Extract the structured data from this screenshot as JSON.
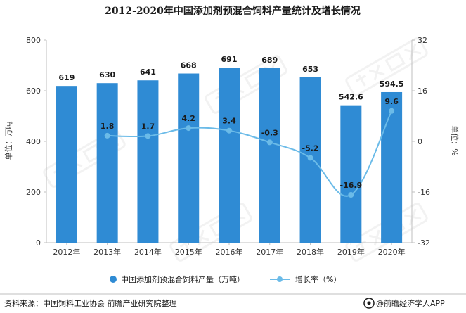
{
  "chart_data": {
    "type": "bar",
    "title": "2012-2020年中国添加剂预混合饲料产量统计及增长情况",
    "categories": [
      "2012年",
      "2013年",
      "2014年",
      "2015年",
      "2016年",
      "2017年",
      "2018年",
      "2019年",
      "2020年"
    ],
    "series": [
      {
        "name": "中国添加剂预混合饲料产量（万吨）",
        "type": "bar",
        "axis": "left",
        "values": [
          619,
          630,
          641,
          668,
          691,
          689,
          653,
          542.6,
          594.5
        ],
        "labels": [
          "619",
          "630",
          "641",
          "668",
          "691",
          "689",
          "653",
          "542.6",
          "594.5"
        ],
        "color": "#2f8bd4"
      },
      {
        "name": "增长率（%）",
        "type": "line",
        "axis": "right",
        "values": [
          null,
          1.8,
          1.7,
          4.2,
          3.4,
          -0.3,
          -5.2,
          -16.9,
          9.6
        ],
        "labels": [
          "",
          "1.8",
          "1.7",
          "4.2",
          "3.4",
          "-0.3",
          "-5.2",
          "-16.9",
          "9.6"
        ],
        "color": "#6bbbe8"
      }
    ],
    "y_left": {
      "label": "单位：万吨",
      "range": [
        0,
        800
      ],
      "ticks": [
        0,
        200,
        400,
        600,
        800
      ],
      "tick_labels": [
        "0",
        "200",
        "400",
        "600",
        "800"
      ]
    },
    "y_right": {
      "label": "单位：%",
      "range": [
        -32,
        32
      ],
      "ticks": [
        -32,
        -16,
        0,
        16,
        32
      ],
      "tick_labels": [
        "-32",
        "-16",
        "0",
        "16",
        "32"
      ]
    },
    "grid": false,
    "legend_position": "bottom"
  },
  "footer": {
    "source": "资料来源：中国饲料工业协会 前瞻产业研究院整理",
    "brand": "@前瞻经济学人APP"
  },
  "colors": {
    "bar": "#2f8bd4",
    "line": "#6bbbe8",
    "background": "#ffffff"
  },
  "icons": {
    "brand_logo": "qianzhan-logo-icon"
  }
}
